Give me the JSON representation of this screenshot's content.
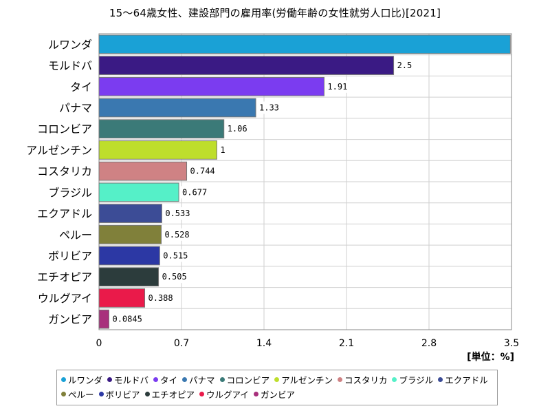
{
  "title": "15～64歳女性、建設部門の雇用率(労働年齢の女性就労人口比)[2021]",
  "unit_label": "[単位：%]",
  "chart_data": {
    "type": "bar",
    "orientation": "horizontal",
    "title": "15～64歳女性、建設部門の雇用率(労働年齢の女性就労人口比)[2021]",
    "unit": "[単位：%]",
    "xlim": [
      0,
      3.5
    ],
    "x_ticks": [
      "0",
      "0.7",
      "1.4",
      "2.1",
      "2.8",
      "3.5"
    ],
    "grid": true,
    "legend_position": "bottom",
    "categories": [
      "ルワンダ",
      "モルドバ",
      "タイ",
      "パナマ",
      "コロンビア",
      "アルゼンチン",
      "コスタリカ",
      "ブラジル",
      "エクアドル",
      "ペルー",
      "ボリビア",
      "エチオピア",
      "ウルグアイ",
      "ガンビア"
    ],
    "values": [
      3.49,
      2.5,
      1.91,
      1.33,
      1.06,
      1,
      0.744,
      0.677,
      0.533,
      0.528,
      0.515,
      0.505,
      0.388,
      0.0845
    ],
    "value_labels": [
      "",
      "2.5",
      "1.91",
      "1.33",
      "1.06",
      "1",
      "0.744",
      "0.677",
      "0.533",
      "0.528",
      "0.515",
      "0.505",
      "0.388",
      "0.0845"
    ],
    "colors": [
      "#1aa1d6",
      "#3a1a84",
      "#7b3cf0",
      "#3a78b0",
      "#3b7a78",
      "#bede2c",
      "#cf8284",
      "#55f0c8",
      "#3c4c96",
      "#80803a",
      "#2c38a4",
      "#2c3c3c",
      "#ea1a4a",
      "#a8307c"
    ]
  }
}
